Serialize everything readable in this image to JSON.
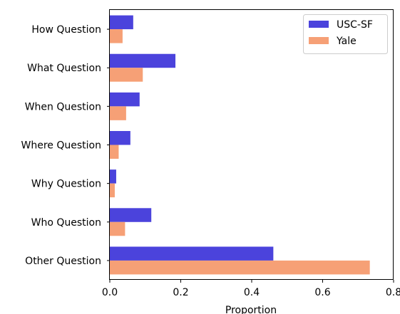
{
  "chart_data": {
    "type": "bar",
    "orientation": "horizontal",
    "categories": [
      "How Question",
      "What Question",
      "When Question",
      "Where Question",
      "Why Question",
      "Who Question",
      "Other Question"
    ],
    "series": [
      {
        "name": "USC-SF",
        "color": "#4b43dc",
        "values": [
          0.066,
          0.185,
          0.084,
          0.058,
          0.018,
          0.117,
          0.461
        ]
      },
      {
        "name": "Yale",
        "color": "#f6a076",
        "values": [
          0.036,
          0.093,
          0.046,
          0.025,
          0.014,
          0.043,
          0.733
        ]
      }
    ],
    "xlabel": "Proportion",
    "ylabel": "",
    "xlim": [
      0,
      0.8
    ],
    "xticks": [
      "0.0",
      "0.2",
      "0.4",
      "0.6",
      "0.8"
    ],
    "grid": false,
    "legend_position": "top-right"
  }
}
